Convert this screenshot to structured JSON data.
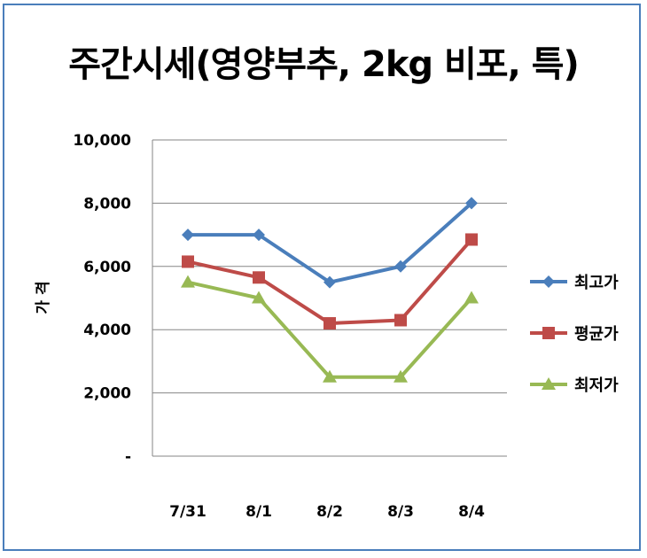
{
  "chart_data": {
    "type": "line",
    "title": "주간시세(영양부추, 2kg 비포, 특)",
    "ylabel": "가 격",
    "xlabel": "",
    "categories": [
      "7/31",
      "8/1",
      "8/2",
      "8/3",
      "8/4"
    ],
    "ylim": [
      0,
      10000
    ],
    "yticks": [
      "-",
      "2,000",
      "4,000",
      "6,000",
      "8,000",
      "10,000"
    ],
    "grid": true,
    "legend_position": "right",
    "series": [
      {
        "name": "최고가",
        "values": [
          7000,
          7000,
          5500,
          6000,
          8000
        ],
        "color": "#4a7ebb",
        "marker": "diamond"
      },
      {
        "name": "평균가",
        "values": [
          6150,
          5650,
          4200,
          4300,
          6850
        ],
        "color": "#be4b48",
        "marker": "square"
      },
      {
        "name": "최저가",
        "values": [
          5500,
          5000,
          2500,
          2500,
          5000
        ],
        "color": "#98b954",
        "marker": "triangle"
      }
    ]
  }
}
